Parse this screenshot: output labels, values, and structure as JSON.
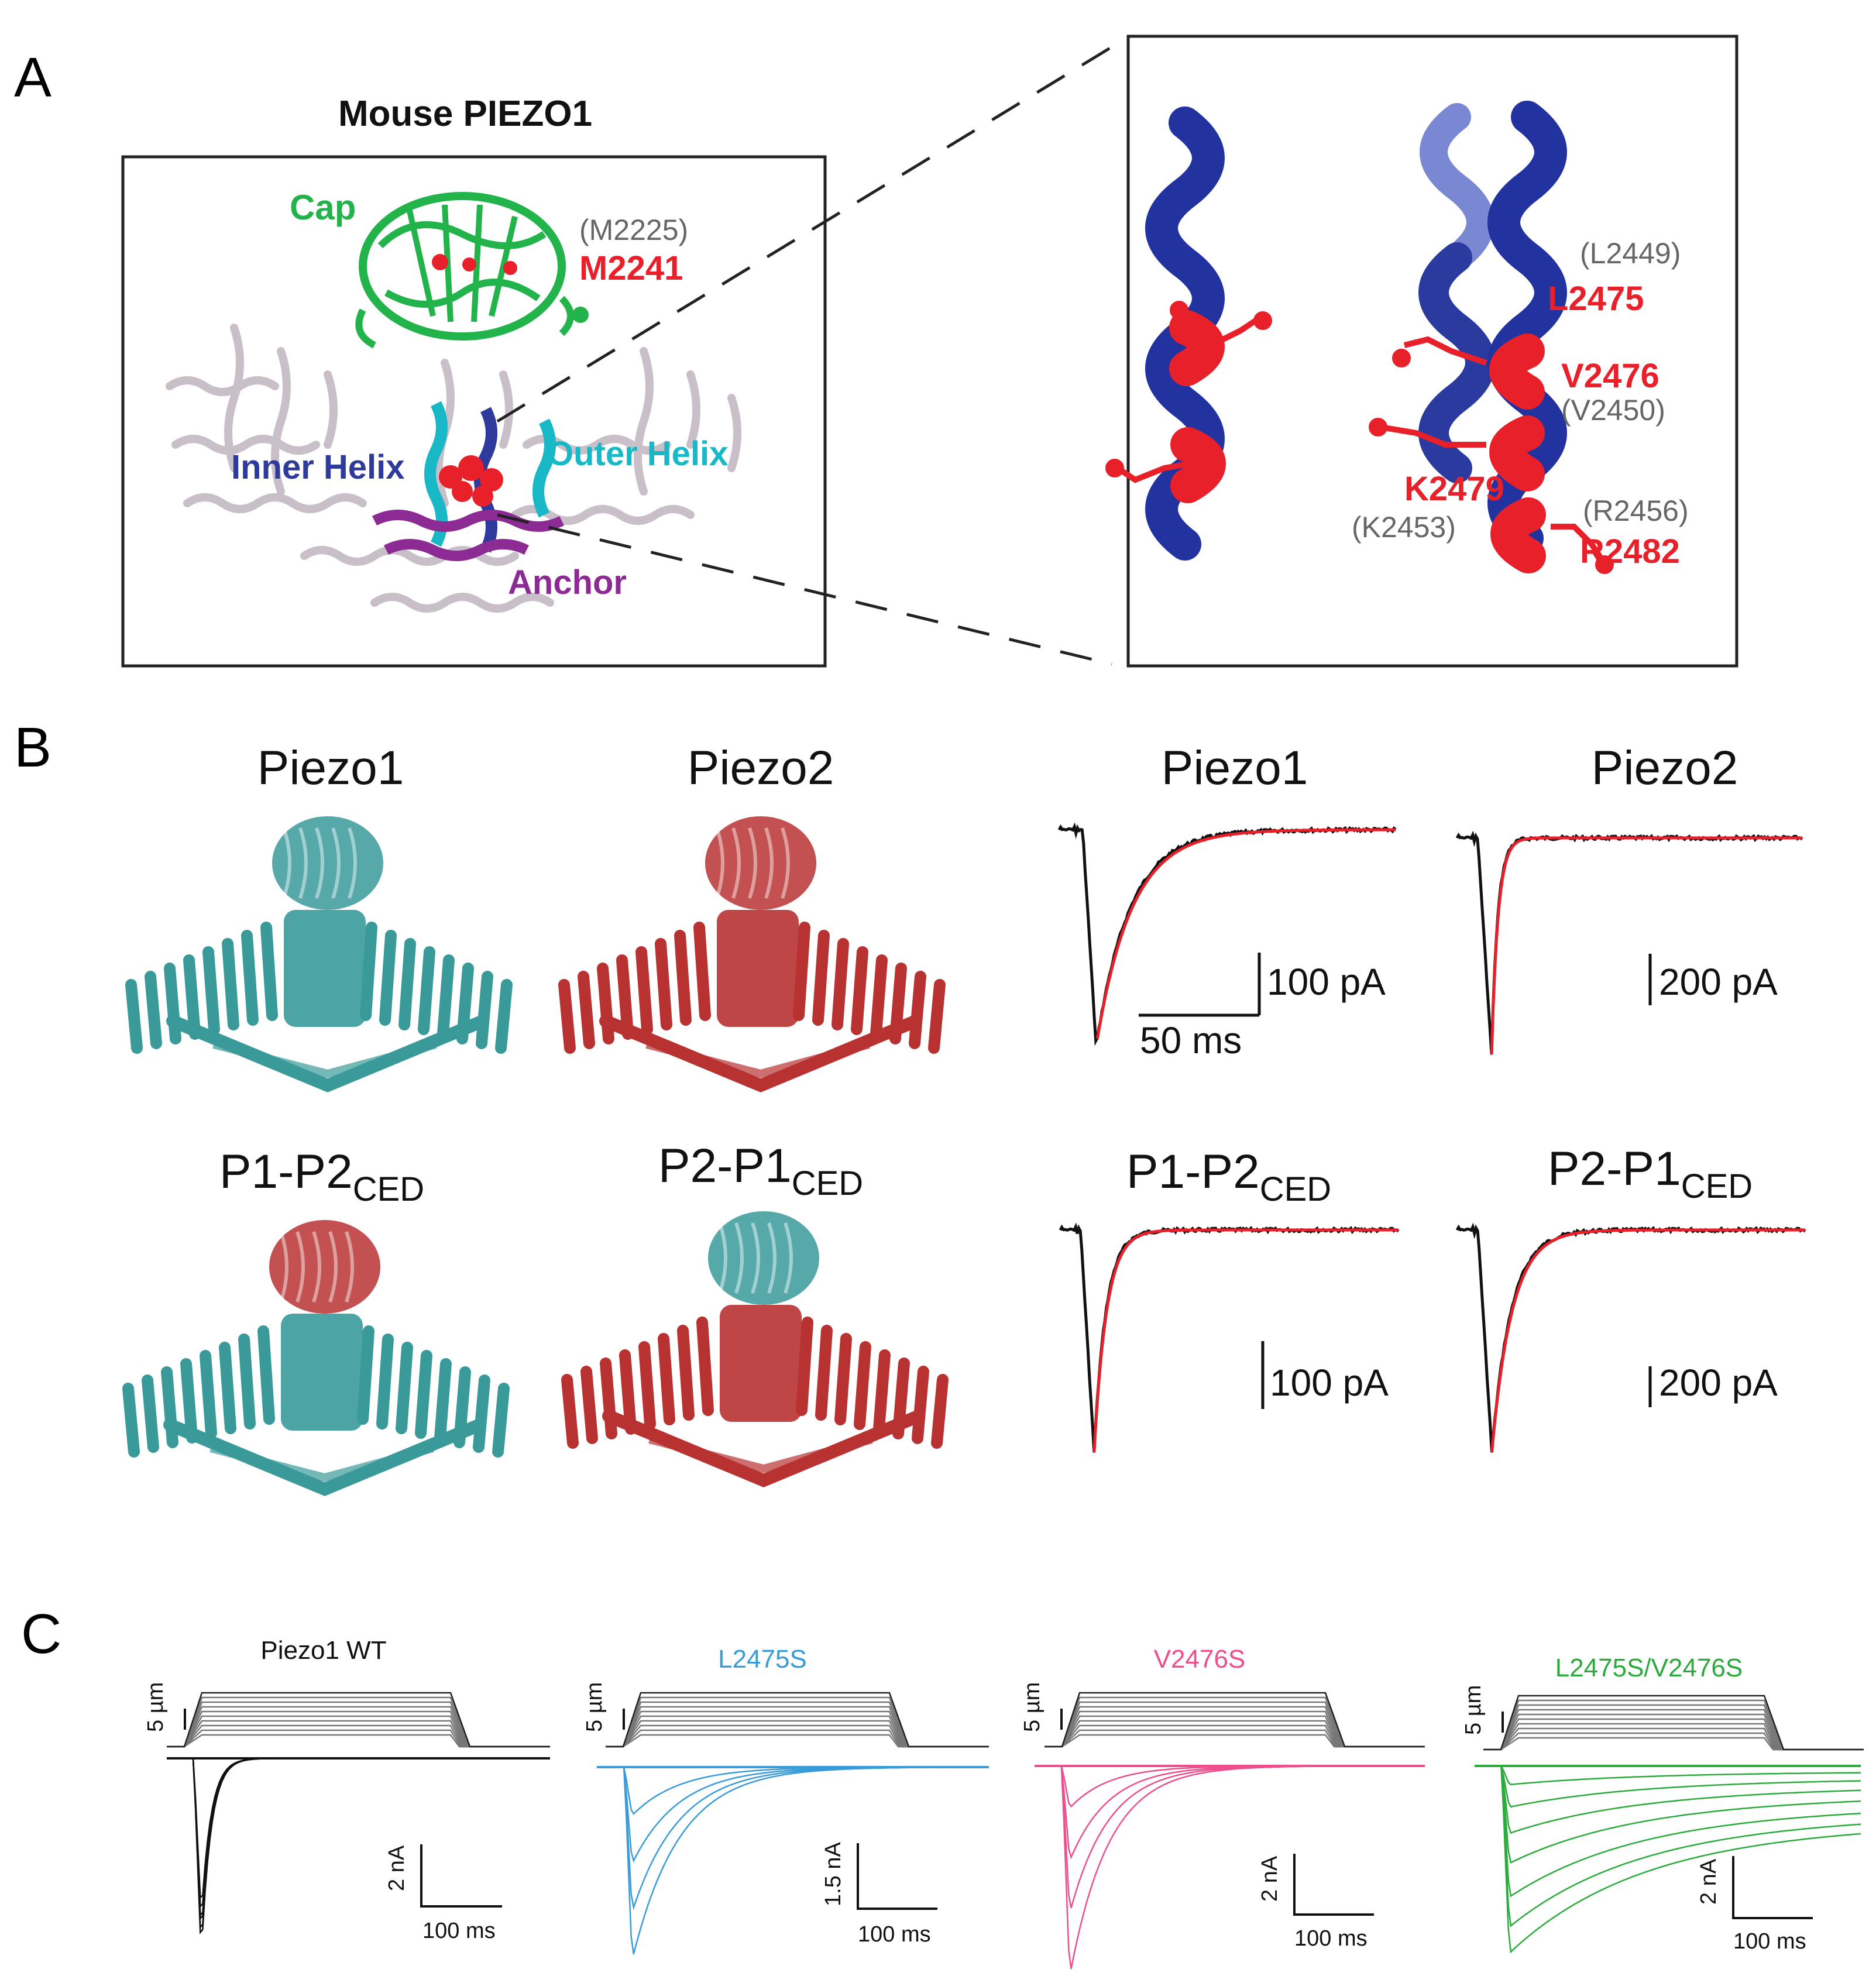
{
  "colors": {
    "cap_green": "#22b34a",
    "inner_blue": "#2e3a9c",
    "outer_cyan": "#19b8c6",
    "anchor_purple": "#8b2b93",
    "highlight_red": "#e8202a",
    "piezo1_teal": "#3a9a9a",
    "piezo2_red": "#b83232",
    "trace_black": "#111111",
    "fit_red": "#e8202a",
    "wt_black": "#111111",
    "l2475s_blue": "#3a9bd9",
    "v2476s_pink": "#ec4f8c",
    "double_green": "#2aab3c",
    "residue_gray": "#666666"
  },
  "panelA": {
    "letter": "A",
    "title": "Mouse PIEZO1",
    "domains": {
      "cap": "Cap",
      "inner_helix": "Inner Helix",
      "outer_helix": "Outer Helix",
      "anchor": "Anchor"
    },
    "cap_residue_alt": "(M2225)",
    "cap_residue": "M2241",
    "zoom_residues": {
      "l2449": "(L2449)",
      "l2475": "L2475",
      "v2476": "V2476",
      "v2450": "(V2450)",
      "k2479": "K2479",
      "k2453": "(K2453)",
      "r2456": "(R2456)",
      "r2482": "R2482"
    }
  },
  "panelB": {
    "letter": "B",
    "structures": [
      {
        "name": "Piezo1",
        "sub": ""
      },
      {
        "name": "Piezo2",
        "sub": ""
      },
      {
        "name": "P1-P2",
        "sub": "CED"
      },
      {
        "name": "P2-P1",
        "sub": "CED"
      }
    ],
    "traces": [
      {
        "name": "Piezo1",
        "sub": "",
        "current_scale": "100 pA",
        "time_scale": "50 ms"
      },
      {
        "name": "Piezo2",
        "sub": "",
        "current_scale": "200 pA"
      },
      {
        "name": "P1-P2",
        "sub": "CED",
        "current_scale": "100 pA"
      },
      {
        "name": "P2-P1",
        "sub": "CED",
        "current_scale": "200 pA"
      }
    ]
  },
  "panelC": {
    "letter": "C",
    "conditions": [
      {
        "name": "Piezo1 WT",
        "disp_scale": "5 µm",
        "current_scale": "2 nA",
        "time_scale": "100 ms"
      },
      {
        "name": "L2475S",
        "disp_scale": "5 µm",
        "current_scale": "1.5 nA",
        "time_scale": "100 ms"
      },
      {
        "name": "V2476S",
        "disp_scale": "5 µm",
        "current_scale": "2 nA",
        "time_scale": "100 ms"
      },
      {
        "name": "L2475S/V2476S",
        "disp_scale": "5 µm",
        "current_scale": "2 nA",
        "time_scale": "100 ms"
      }
    ]
  }
}
